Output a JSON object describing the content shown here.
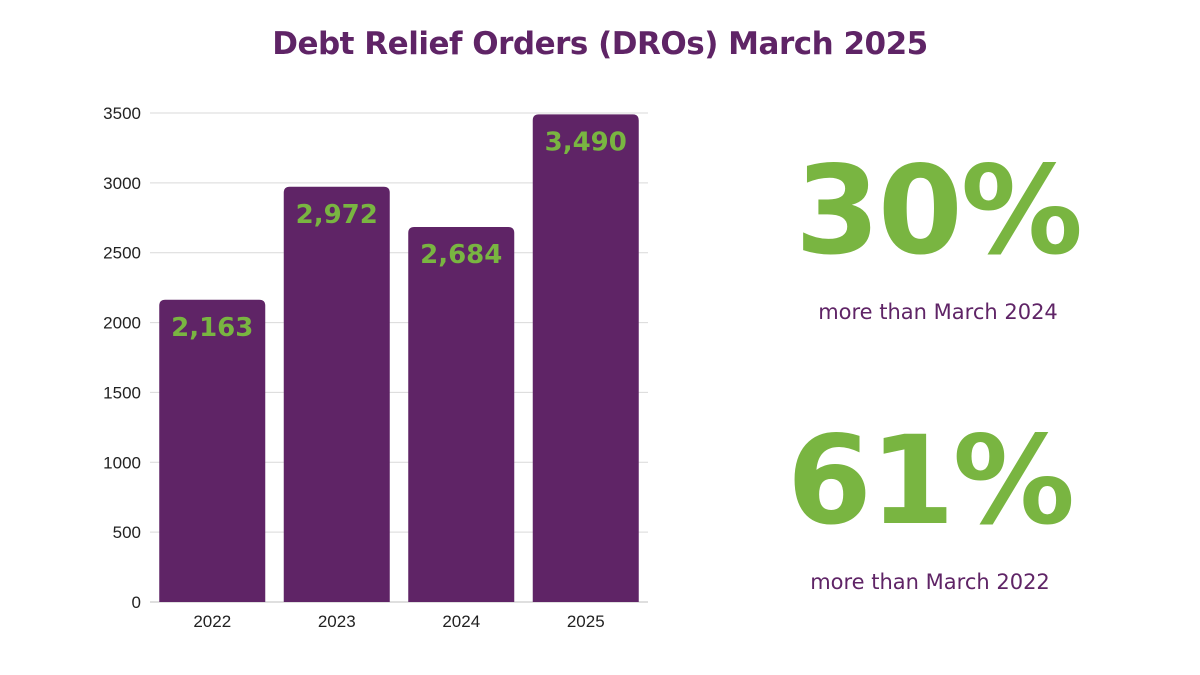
{
  "colors": {
    "bar": "#5f2466",
    "label": "#79b541",
    "title": "#5f2466",
    "grid": "#d9d9d9",
    "axis_text": "#222222"
  },
  "chart_data": {
    "type": "bar",
    "title": "Debt Relief Orders (DROs) March 2025",
    "categories": [
      "2022",
      "2023",
      "2024",
      "2025"
    ],
    "values": [
      2163,
      2972,
      2684,
      3490
    ],
    "value_labels": [
      "2,163",
      "2,972",
      "2,684",
      "3,490"
    ],
    "yticks": [
      "0",
      "500",
      "1000",
      "1500",
      "2000",
      "2500",
      "3000",
      "3500"
    ],
    "ylim": [
      0,
      3500
    ],
    "xlabel": "",
    "ylabel": "",
    "grid": true,
    "legend": "none"
  },
  "stats": [
    {
      "value": "30%",
      "caption": "more than March 2024"
    },
    {
      "value": "61%",
      "caption": "more than March 2022"
    }
  ]
}
